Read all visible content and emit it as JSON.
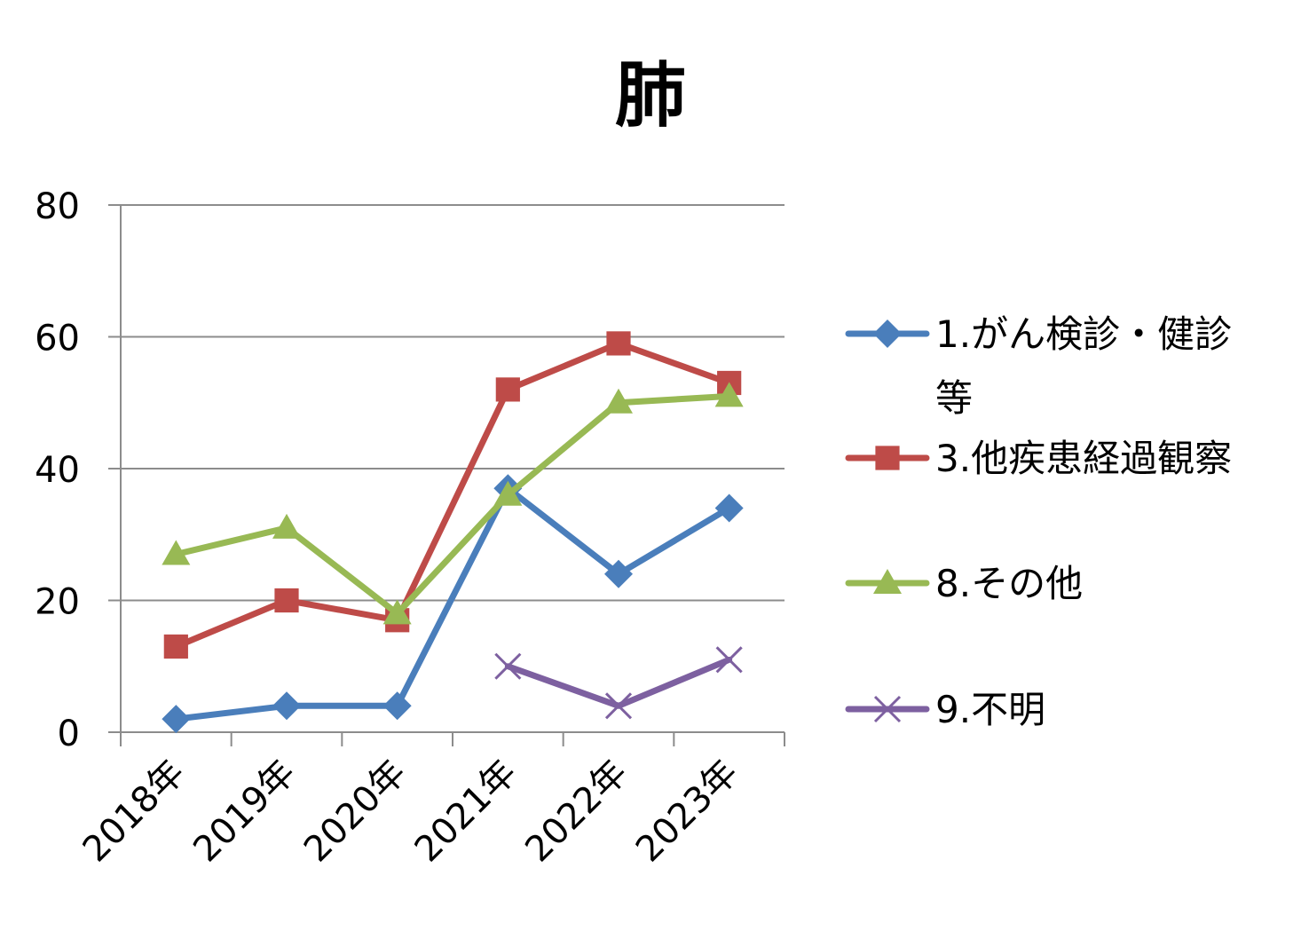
{
  "chart_data": {
    "type": "line",
    "title": "肺",
    "xlabel": "",
    "ylabel": "",
    "categories": [
      "2018年",
      "2019年",
      "2020年",
      "2021年",
      "2022年",
      "2023年"
    ],
    "ylim": [
      0,
      80
    ],
    "yticks": [
      0,
      20,
      40,
      60,
      80
    ],
    "grid": true,
    "legend_position": "right",
    "series": [
      {
        "name": "1.がん検診・健診等",
        "name_lines": [
          "1.がん検診・健診",
          "等"
        ],
        "values": [
          2,
          4,
          4,
          37,
          24,
          34
        ],
        "color": "#4A7EBB",
        "marker": "diamond"
      },
      {
        "name": "3.他疾患経過観察",
        "name_lines": [
          "3.他疾患経過観察"
        ],
        "values": [
          13,
          20,
          17,
          52,
          59,
          53
        ],
        "color": "#BE4B48",
        "marker": "square"
      },
      {
        "name": "8.その他",
        "name_lines": [
          "8.その他"
        ],
        "values": [
          27,
          31,
          18,
          36,
          50,
          51
        ],
        "color": "#98B954",
        "marker": "triangle"
      },
      {
        "name": "9.不明",
        "name_lines": [
          "9.不明"
        ],
        "values": [
          null,
          null,
          null,
          10,
          4,
          11
        ],
        "color": "#7D60A0",
        "marker": "x"
      }
    ]
  }
}
